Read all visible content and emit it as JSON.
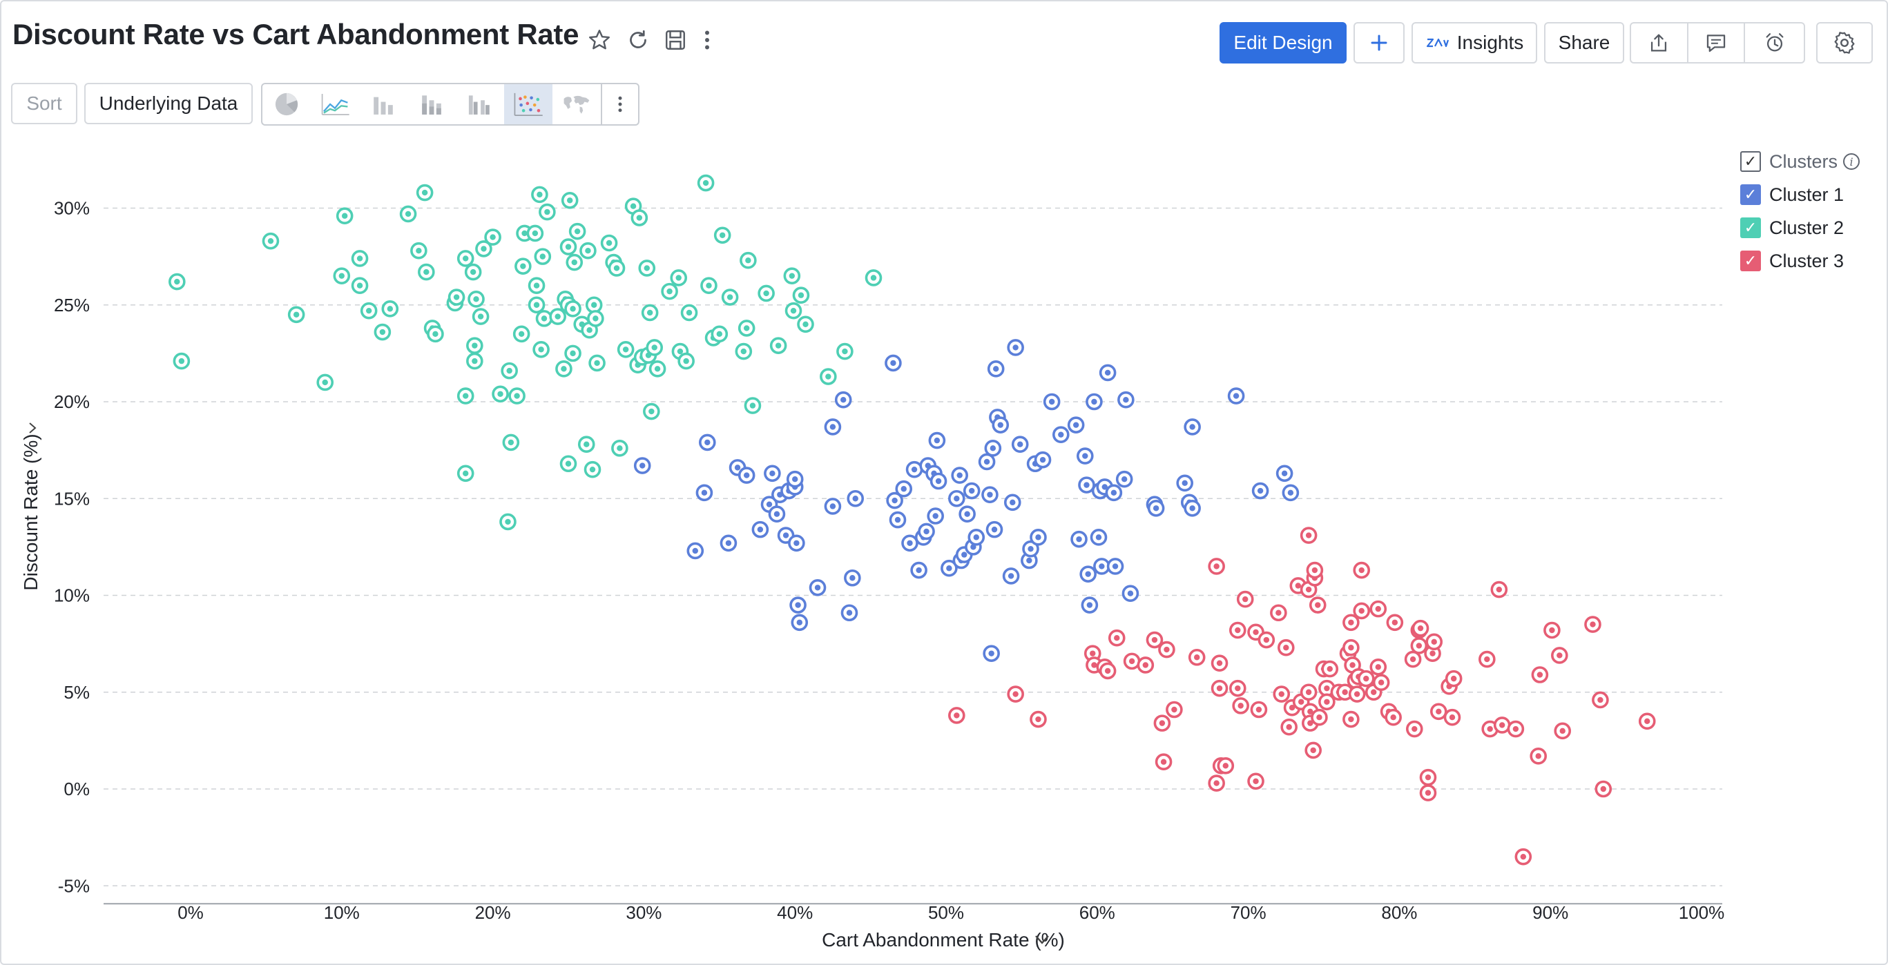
{
  "header": {
    "title": "Discount Rate vs Cart Abandonment Rate",
    "edit_design": "Edit Design",
    "insights": "Insights",
    "share": "Share"
  },
  "toolbar": {
    "sort": "Sort",
    "underlying_data": "Underlying Data",
    "chart_types": [
      "pie",
      "line",
      "bar",
      "stacked-bar",
      "grouped-bar",
      "scatter",
      "map"
    ],
    "selected_chart_type": "scatter"
  },
  "legend": {
    "title": "Clusters",
    "items": [
      {
        "label": "Cluster 1",
        "color": "#5b7fd9"
      },
      {
        "label": "Cluster 2",
        "color": "#4ecfb4"
      },
      {
        "label": "Cluster 3",
        "color": "#e65d74"
      }
    ]
  },
  "chart_data": {
    "type": "scatter",
    "title": "Discount Rate vs Cart Abandonment Rate",
    "xlabel": "Cart Abandonment Rate (%)",
    "ylabel": "Discount Rate (%)",
    "xlim": [
      -5,
      102
    ],
    "ylim": [
      -6,
      33
    ],
    "x_ticks": [
      0,
      10,
      20,
      30,
      40,
      50,
      60,
      70,
      80,
      90,
      100
    ],
    "x_tick_labels": [
      "0%",
      "10%",
      "20%",
      "30%",
      "40%",
      "50%",
      "60%",
      "70%",
      "80%",
      "90%",
      "100%"
    ],
    "y_ticks": [
      -5,
      0,
      5,
      10,
      15,
      20,
      25,
      30
    ],
    "y_tick_labels": [
      "-5%",
      "0%",
      "5%",
      "10%",
      "15%",
      "20%",
      "25%",
      "30%"
    ],
    "grid": "horizontal dashed",
    "legend_position": "top-right",
    "series": [
      {
        "name": "Cluster 1",
        "color": "#5b7fd9",
        "points": [
          [
            29.9,
            16.7
          ],
          [
            33.4,
            12.3
          ],
          [
            34.0,
            15.3
          ],
          [
            34.2,
            17.9
          ],
          [
            35.6,
            12.7
          ],
          [
            36.2,
            16.6
          ],
          [
            36.8,
            16.2
          ],
          [
            37.7,
            13.4
          ],
          [
            38.3,
            14.7
          ],
          [
            38.5,
            16.3
          ],
          [
            38.8,
            14.2
          ],
          [
            39.0,
            15.2
          ],
          [
            39.4,
            13.1
          ],
          [
            39.6,
            15.4
          ],
          [
            40.0,
            15.6
          ],
          [
            40.0,
            16.0
          ],
          [
            40.1,
            12.7
          ],
          [
            40.2,
            9.5
          ],
          [
            40.3,
            8.6
          ],
          [
            41.5,
            10.4
          ],
          [
            42.5,
            18.7
          ],
          [
            42.5,
            14.6
          ],
          [
            43.2,
            20.1
          ],
          [
            43.6,
            9.1
          ],
          [
            43.8,
            10.9
          ],
          [
            44.0,
            15.0
          ],
          [
            46.5,
            22.0
          ],
          [
            46.6,
            14.9
          ],
          [
            46.8,
            13.9
          ],
          [
            47.2,
            15.5
          ],
          [
            47.6,
            12.7
          ],
          [
            47.9,
            16.5
          ],
          [
            48.2,
            11.3
          ],
          [
            48.5,
            13.0
          ],
          [
            48.7,
            13.3
          ],
          [
            48.8,
            16.7
          ],
          [
            49.2,
            16.3
          ],
          [
            49.3,
            14.1
          ],
          [
            49.4,
            18.0
          ],
          [
            49.5,
            15.9
          ],
          [
            50.2,
            11.4
          ],
          [
            50.7,
            15.0
          ],
          [
            50.9,
            16.2
          ],
          [
            51.0,
            11.8
          ],
          [
            51.2,
            12.1
          ],
          [
            51.4,
            14.2
          ],
          [
            51.7,
            15.4
          ],
          [
            51.8,
            12.5
          ],
          [
            52.0,
            13.0
          ],
          [
            52.7,
            16.9
          ],
          [
            52.9,
            15.2
          ],
          [
            53.0,
            7.0
          ],
          [
            53.1,
            17.6
          ],
          [
            53.2,
            13.4
          ],
          [
            53.3,
            21.7
          ],
          [
            53.4,
            19.2
          ],
          [
            53.6,
            18.8
          ],
          [
            54.3,
            11.0
          ],
          [
            54.4,
            14.8
          ],
          [
            54.6,
            22.8
          ],
          [
            54.9,
            17.8
          ],
          [
            55.5,
            11.8
          ],
          [
            55.6,
            12.4
          ],
          [
            55.9,
            16.8
          ],
          [
            56.1,
            13.0
          ],
          [
            56.4,
            17.0
          ],
          [
            57.0,
            20.0
          ],
          [
            57.6,
            18.3
          ],
          [
            58.6,
            18.8
          ],
          [
            58.8,
            12.9
          ],
          [
            59.2,
            17.2
          ],
          [
            59.3,
            15.7
          ],
          [
            59.4,
            11.1
          ],
          [
            59.5,
            9.5
          ],
          [
            59.8,
            20.0
          ],
          [
            60.1,
            13.0
          ],
          [
            60.2,
            15.4
          ],
          [
            60.3,
            11.5
          ],
          [
            60.5,
            15.6
          ],
          [
            60.7,
            21.5
          ],
          [
            61.1,
            15.3
          ],
          [
            61.2,
            11.5
          ],
          [
            61.8,
            16.0
          ],
          [
            61.9,
            20.1
          ],
          [
            62.2,
            10.1
          ],
          [
            63.8,
            14.7
          ],
          [
            63.9,
            14.5
          ],
          [
            65.8,
            15.8
          ],
          [
            66.1,
            14.8
          ],
          [
            66.3,
            18.7
          ],
          [
            66.3,
            14.5
          ],
          [
            69.2,
            20.3
          ],
          [
            70.8,
            15.4
          ],
          [
            72.4,
            16.3
          ],
          [
            72.8,
            15.3
          ]
        ]
      },
      {
        "name": "Cluster 2",
        "color": "#4ecfb4",
        "points": [
          [
            -0.9,
            26.2
          ],
          [
            -0.6,
            22.1
          ],
          [
            5.3,
            28.3
          ],
          [
            7.0,
            24.5
          ],
          [
            8.9,
            21.0
          ],
          [
            10.0,
            26.5
          ],
          [
            10.2,
            29.6
          ],
          [
            11.2,
            27.4
          ],
          [
            11.2,
            26.0
          ],
          [
            11.8,
            24.7
          ],
          [
            12.7,
            23.6
          ],
          [
            13.2,
            24.8
          ],
          [
            14.4,
            29.7
          ],
          [
            15.1,
            27.8
          ],
          [
            15.5,
            30.8
          ],
          [
            15.6,
            26.7
          ],
          [
            16.0,
            23.8
          ],
          [
            16.2,
            23.5
          ],
          [
            17.5,
            25.1
          ],
          [
            17.6,
            25.4
          ],
          [
            18.2,
            27.4
          ],
          [
            18.2,
            20.3
          ],
          [
            18.2,
            16.3
          ],
          [
            18.7,
            26.7
          ],
          [
            18.8,
            22.9
          ],
          [
            18.8,
            22.1
          ],
          [
            18.9,
            25.3
          ],
          [
            19.2,
            24.4
          ],
          [
            19.4,
            27.9
          ],
          [
            20.0,
            28.5
          ],
          [
            20.5,
            20.4
          ],
          [
            21.1,
            21.6
          ],
          [
            21.2,
            17.9
          ],
          [
            21.0,
            13.8
          ],
          [
            21.6,
            20.3
          ],
          [
            21.9,
            23.5
          ],
          [
            22.0,
            27.0
          ],
          [
            22.1,
            28.7
          ],
          [
            22.8,
            28.7
          ],
          [
            22.9,
            26.0
          ],
          [
            22.9,
            25.0
          ],
          [
            23.1,
            30.7
          ],
          [
            23.2,
            22.7
          ],
          [
            23.3,
            27.5
          ],
          [
            23.4,
            24.3
          ],
          [
            23.6,
            29.8
          ],
          [
            24.3,
            24.4
          ],
          [
            24.7,
            21.7
          ],
          [
            24.8,
            25.3
          ],
          [
            25.0,
            25.0
          ],
          [
            25.0,
            28.0
          ],
          [
            25.0,
            16.8
          ],
          [
            25.1,
            30.4
          ],
          [
            25.3,
            24.8
          ],
          [
            25.3,
            22.5
          ],
          [
            25.4,
            27.2
          ],
          [
            25.6,
            28.8
          ],
          [
            25.9,
            24.0
          ],
          [
            26.2,
            17.8
          ],
          [
            26.3,
            27.8
          ],
          [
            26.4,
            23.7
          ],
          [
            26.6,
            16.5
          ],
          [
            26.7,
            25.0
          ],
          [
            26.8,
            24.3
          ],
          [
            26.9,
            22.0
          ],
          [
            27.7,
            28.2
          ],
          [
            28.0,
            27.2
          ],
          [
            28.2,
            26.9
          ],
          [
            28.4,
            17.6
          ],
          [
            28.8,
            22.7
          ],
          [
            29.3,
            30.1
          ],
          [
            29.6,
            21.9
          ],
          [
            29.7,
            29.5
          ],
          [
            29.9,
            22.3
          ],
          [
            30.2,
            26.9
          ],
          [
            30.3,
            22.4
          ],
          [
            30.4,
            24.6
          ],
          [
            30.5,
            19.5
          ],
          [
            30.7,
            22.8
          ],
          [
            30.9,
            21.7
          ],
          [
            31.7,
            25.7
          ],
          [
            32.3,
            26.4
          ],
          [
            32.4,
            22.6
          ],
          [
            32.8,
            22.1
          ],
          [
            33.0,
            24.6
          ],
          [
            34.1,
            31.3
          ],
          [
            34.3,
            26.0
          ],
          [
            34.6,
            23.3
          ],
          [
            35.0,
            23.5
          ],
          [
            35.2,
            28.6
          ],
          [
            35.7,
            25.4
          ],
          [
            36.6,
            22.6
          ],
          [
            36.8,
            23.8
          ],
          [
            36.9,
            27.3
          ],
          [
            37.2,
            19.8
          ],
          [
            38.1,
            25.6
          ],
          [
            38.9,
            22.9
          ],
          [
            39.8,
            26.5
          ],
          [
            39.9,
            24.7
          ],
          [
            40.4,
            25.5
          ],
          [
            40.7,
            24.0
          ],
          [
            42.2,
            21.3
          ],
          [
            43.3,
            22.6
          ],
          [
            45.2,
            26.4
          ]
        ]
      },
      {
        "name": "Cluster 3",
        "color": "#e65d74",
        "points": [
          [
            50.7,
            3.8
          ],
          [
            54.6,
            4.9
          ],
          [
            56.1,
            3.6
          ],
          [
            59.7,
            7.0
          ],
          [
            59.8,
            6.4
          ],
          [
            60.5,
            6.3
          ],
          [
            60.7,
            6.1
          ],
          [
            61.3,
            7.8
          ],
          [
            62.3,
            6.6
          ],
          [
            63.2,
            6.4
          ],
          [
            63.8,
            7.7
          ],
          [
            64.3,
            3.4
          ],
          [
            64.4,
            1.4
          ],
          [
            64.6,
            7.2
          ],
          [
            65.1,
            4.1
          ],
          [
            66.6,
            6.8
          ],
          [
            67.9,
            11.5
          ],
          [
            67.9,
            0.3
          ],
          [
            68.1,
            6.5
          ],
          [
            68.1,
            5.2
          ],
          [
            68.2,
            1.2
          ],
          [
            68.5,
            1.2
          ],
          [
            69.3,
            5.2
          ],
          [
            69.3,
            8.2
          ],
          [
            69.5,
            4.3
          ],
          [
            69.8,
            9.8
          ],
          [
            70.5,
            8.1
          ],
          [
            70.5,
            0.4
          ],
          [
            70.7,
            4.1
          ],
          [
            71.2,
            7.7
          ],
          [
            72.0,
            9.1
          ],
          [
            72.2,
            4.9
          ],
          [
            72.5,
            7.3
          ],
          [
            72.7,
            3.2
          ],
          [
            72.9,
            4.2
          ],
          [
            73.3,
            10.5
          ],
          [
            73.5,
            4.5
          ],
          [
            74.0,
            13.1
          ],
          [
            74.0,
            5.0
          ],
          [
            74.0,
            10.3
          ],
          [
            74.1,
            4.0
          ],
          [
            74.1,
            3.4
          ],
          [
            74.3,
            2.0
          ],
          [
            74.4,
            10.9
          ],
          [
            74.4,
            11.3
          ],
          [
            74.6,
            9.5
          ],
          [
            74.7,
            3.7
          ],
          [
            75.0,
            6.2
          ],
          [
            75.2,
            5.2
          ],
          [
            75.2,
            4.5
          ],
          [
            75.4,
            6.2
          ],
          [
            76.0,
            5.0
          ],
          [
            76.4,
            5.0
          ],
          [
            76.6,
            7.0
          ],
          [
            76.8,
            3.6
          ],
          [
            76.8,
            8.6
          ],
          [
            76.8,
            7.3
          ],
          [
            76.9,
            6.4
          ],
          [
            77.1,
            5.6
          ],
          [
            77.2,
            4.9
          ],
          [
            77.3,
            5.8
          ],
          [
            77.5,
            9.2
          ],
          [
            77.5,
            11.3
          ],
          [
            77.8,
            5.7
          ],
          [
            78.3,
            5.0
          ],
          [
            78.6,
            6.3
          ],
          [
            78.6,
            9.3
          ],
          [
            78.8,
            5.5
          ],
          [
            79.3,
            4.0
          ],
          [
            79.6,
            3.7
          ],
          [
            79.7,
            8.6
          ],
          [
            80.9,
            6.7
          ],
          [
            81.0,
            3.1
          ],
          [
            81.3,
            8.2
          ],
          [
            81.3,
            7.4
          ],
          [
            81.4,
            8.3
          ],
          [
            81.9,
            0.6
          ],
          [
            81.9,
            -0.2
          ],
          [
            82.2,
            7.0
          ],
          [
            82.3,
            7.6
          ],
          [
            82.6,
            4.0
          ],
          [
            83.3,
            5.3
          ],
          [
            83.5,
            3.7
          ],
          [
            83.6,
            5.7
          ],
          [
            85.8,
            6.7
          ],
          [
            86.0,
            3.1
          ],
          [
            86.6,
            10.3
          ],
          [
            86.8,
            3.3
          ],
          [
            87.7,
            3.1
          ],
          [
            88.2,
            -3.5
          ],
          [
            89.2,
            1.7
          ],
          [
            89.3,
            5.9
          ],
          [
            90.1,
            8.2
          ],
          [
            90.6,
            6.9
          ],
          [
            90.8,
            3.0
          ],
          [
            92.8,
            8.5
          ],
          [
            93.3,
            4.6
          ],
          [
            93.5,
            0.0
          ],
          [
            96.4,
            3.5
          ]
        ]
      }
    ]
  }
}
